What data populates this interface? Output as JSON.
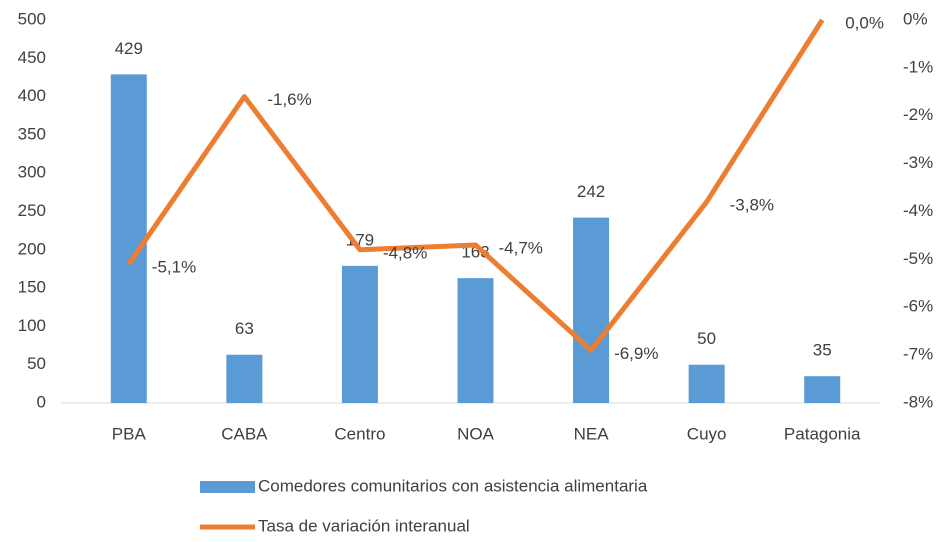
{
  "chart_data": {
    "type": "bar_line",
    "categories": [
      "PBA",
      "CABA",
      "Centro",
      "NOA",
      "NEA",
      "Cuyo",
      "Patagonia"
    ],
    "series": [
      {
        "name": "Comedores comunitarios con asistencia alimentaria",
        "type": "bar",
        "color": "#5b9bd5",
        "values": [
          429,
          63,
          179,
          163,
          242,
          50,
          35
        ]
      },
      {
        "name": "Tasa de variación interanual",
        "type": "line",
        "axis": "y2",
        "color": "#ed7d31",
        "values": [
          -5.1,
          -1.6,
          -4.8,
          -4.7,
          -6.9,
          -3.8,
          0.0
        ],
        "value_labels": [
          "-5,1%",
          "-1,6%",
          "-4,8%",
          "-4,7%",
          "-6,9%",
          "-3,8%",
          "0,0%"
        ]
      }
    ],
    "ylim": [
      0,
      500
    ],
    "yticks": [
      0,
      50,
      100,
      150,
      200,
      250,
      300,
      350,
      400,
      450,
      500
    ],
    "y2lim": [
      -8,
      0
    ],
    "y2ticks": [
      {
        "value": 0,
        "label": "0%"
      },
      {
        "value": -1,
        "label": "-1%"
      },
      {
        "value": -2,
        "label": "-2%"
      },
      {
        "value": -3,
        "label": "-3%"
      },
      {
        "value": -4,
        "label": "-4%"
      },
      {
        "value": -5,
        "label": "-5%"
      },
      {
        "value": -6,
        "label": "-6%"
      },
      {
        "value": -7,
        "label": "-7%"
      },
      {
        "value": -8,
        "label": "-8%"
      }
    ],
    "legend": "bottom",
    "grid": false
  }
}
